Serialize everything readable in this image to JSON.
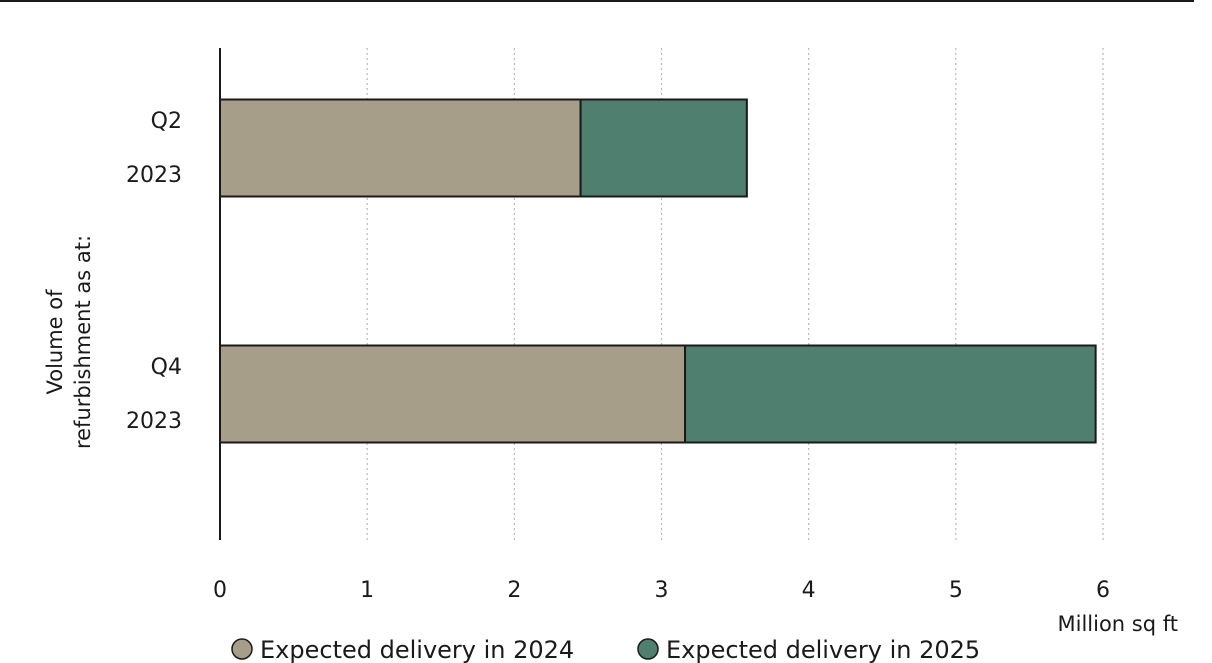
{
  "chart_data": {
    "type": "bar",
    "orientation": "horizontal",
    "stacked": true,
    "categories": [
      [
        "Q2",
        "2023"
      ],
      [
        "Q4",
        "2023"
      ]
    ],
    "series": [
      {
        "name": "Expected delivery in 2024",
        "values": [
          2.45,
          3.16
        ],
        "color": "#a69e88"
      },
      {
        "name": "Expected delivery in 2025",
        "values": [
          1.13,
          2.79
        ],
        "color": "#4f7f6e"
      }
    ],
    "xlabel": "Million sq ft",
    "ylabel": [
      "Volume of",
      "refurbishment as at:"
    ],
    "xlim": [
      0,
      6
    ],
    "xticks": [
      "0",
      "1",
      "2",
      "3",
      "4",
      "5",
      "6"
    ],
    "grid": "vertical dotted",
    "legend": "bottom"
  }
}
